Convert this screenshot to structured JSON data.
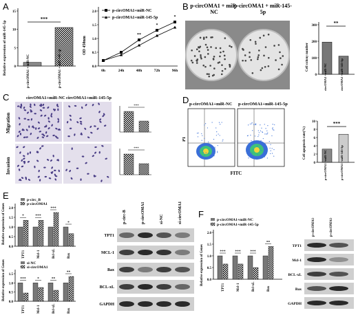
{
  "panels": {
    "A": "A",
    "B": "B",
    "C": "C",
    "D": "D",
    "E": "E",
    "F": "F"
  },
  "A": {
    "bar": {
      "ylabel": "Relative expression of miR-145-5p",
      "sig": "***",
      "yticks": [
        "15",
        "10",
        "5",
        "0"
      ],
      "categories": [
        "p-circOMA1 +miR-NC",
        "p-circOMA1 +miR-145-5p"
      ]
    },
    "line": {
      "ylabel": "OD 450nm",
      "legend": [
        "p-circOMA1+miR-NC",
        "p-circOMA1+miR-145-5p"
      ],
      "x": [
        "0h",
        "24h",
        "48h",
        "72h",
        "96h"
      ],
      "yticks": [
        "2.0",
        "1.5",
        "1.0",
        "0.5",
        "0.0"
      ],
      "sigs": [
        "**",
        "*",
        "*"
      ]
    }
  },
  "B": {
    "dish_labels": [
      "p-circOMA1 + miR-NC",
      "p-circOMA1 + miR-145-5p"
    ],
    "bar": {
      "ylabel": "Cell colony number",
      "sig": "**",
      "yticks": [
        "300",
        "200",
        "100",
        "0"
      ],
      "categories": [
        "circOMA1 +miR-NC",
        "circOMA1 +miR-145-5p"
      ]
    }
  },
  "C": {
    "col_labels": [
      "circOMA1+miR-NC",
      "circOMA1+miR-145-5p"
    ],
    "row_labels": [
      "Migration",
      "Invasion"
    ],
    "sig": "***"
  },
  "D": {
    "titles": [
      "p-circOMA1+miR-NC",
      "p-circOMA1+miR-145-5p"
    ],
    "xlabel": "FITC",
    "ylabel": "PI",
    "bar": {
      "ylabel": "Cell apoptosis rate(%)",
      "sig": "***",
      "yticks": [
        "10",
        "8",
        "6",
        "4",
        "2",
        "0"
      ],
      "categories": [
        "p-circOMA1 +miR-NC",
        "p-circOMA1 +miR-145-5p"
      ]
    }
  },
  "E": {
    "top_legend": [
      "p-circ_B",
      "p-circOMA1"
    ],
    "bottom_legend": [
      "si-NC",
      "si-circOMA1"
    ],
    "ylabel": "Relative expression of Genes",
    "genes": [
      "TPT1",
      "Mcl-1",
      "Bcl-xL",
      "Bax"
    ],
    "top_sigs": [
      "*",
      "***",
      "***",
      "*"
    ],
    "bottom_sigs": [
      "***",
      "*",
      "**",
      "**"
    ],
    "yticks_top": [
      "2.0",
      "1.5",
      "1.0",
      "0.5",
      "0.0"
    ],
    "yticks_bottom": [
      "1.5",
      "1.0",
      "0.5",
      "0.0"
    ],
    "blot_cols": [
      "p-circ-B",
      "p-circOMA1",
      "si-NC",
      "si-circOMA1"
    ],
    "blot_rows": [
      "TPT1",
      "MCL-1",
      "Bax",
      "BCL-xL",
      "GAPDH"
    ]
  },
  "F": {
    "legend": [
      "p-circOMA1+miR-NC",
      "p-circOMA1+miR-145-5p"
    ],
    "ylabel": "Relative expression of Genes",
    "genes": [
      "TPT1",
      "Mcl-1",
      "Bcl-xL",
      "Bax"
    ],
    "sigs": [
      "***",
      "***",
      "***",
      "**"
    ],
    "yticks": [
      "2.0",
      "1.5",
      "1.0",
      "0.5",
      "0.0"
    ],
    "blot_cols": [
      "p-circOMA1+ miR-NC",
      "p-circOMA1+ miR-145-5p"
    ],
    "blot_rows": [
      "TPT1",
      "Mcl-1",
      "BCL-xL",
      "Bax",
      "GAPDH"
    ]
  },
  "chart_data": [
    {
      "panel": "A-left",
      "type": "bar",
      "categories": [
        "p-circOMA1 +miR-NC",
        "p-circOMA1 +miR-145-5p"
      ],
      "values": [
        1.0,
        10.5
      ],
      "ylim": [
        0,
        15
      ]
    },
    {
      "panel": "A-right",
      "type": "line",
      "x": [
        "0h",
        "24h",
        "48h",
        "72h",
        "96h"
      ],
      "series": [
        {
          "name": "p-circOMA1+miR-NC",
          "values": [
            0.2,
            0.5,
            0.95,
            1.3,
            1.6
          ]
        },
        {
          "name": "p-circOMA1+miR-145-5p",
          "values": [
            0.2,
            0.4,
            0.75,
            1.1,
            1.4
          ]
        }
      ],
      "ylim": [
        0,
        2
      ]
    },
    {
      "panel": "B",
      "type": "bar",
      "categories": [
        "circOMA1 +miR-NC",
        "circOMA1 +miR-145-5p"
      ],
      "values": [
        195,
        110
      ],
      "ylim": [
        0,
        300
      ]
    },
    {
      "panel": "D",
      "type": "bar",
      "categories": [
        "p-circOMA1 +miR-NC",
        "p-circOMA1 +miR-145-5p"
      ],
      "values": [
        3.2,
        6.8
      ],
      "ylim": [
        0,
        10
      ]
    },
    {
      "panel": "E-top",
      "type": "bar",
      "categories": [
        "TPT1",
        "Mcl-1",
        "Bcl-xL",
        "Bax"
      ],
      "series": [
        {
          "name": "p-circ_B",
          "values": [
            1.0,
            1.0,
            1.0,
            1.0
          ]
        },
        {
          "name": "p-circOMA1",
          "values": [
            1.35,
            1.35,
            1.75,
            0.65
          ]
        }
      ],
      "ylim": [
        0,
        2
      ]
    },
    {
      "panel": "E-bottom",
      "type": "bar",
      "categories": [
        "TPT1",
        "Mcl-1",
        "Bcl-xL",
        "Bax"
      ],
      "series": [
        {
          "name": "si-NC",
          "values": [
            1.0,
            1.0,
            1.0,
            1.0
          ]
        },
        {
          "name": "si-circOMA1",
          "values": [
            0.45,
            0.75,
            0.6,
            1.35
          ]
        }
      ],
      "ylim": [
        0,
        1.5
      ]
    },
    {
      "panel": "F",
      "type": "bar",
      "categories": [
        "TPT1",
        "Mcl-1",
        "Bcl-xL",
        "Bax"
      ],
      "series": [
        {
          "name": "p-circOMA1+miR-NC",
          "values": [
            1.0,
            1.0,
            1.0,
            1.0
          ]
        },
        {
          "name": "p-circOMA1+miR-145-5p",
          "values": [
            0.65,
            0.65,
            0.5,
            1.4
          ]
        }
      ],
      "ylim": [
        0,
        2
      ]
    }
  ]
}
